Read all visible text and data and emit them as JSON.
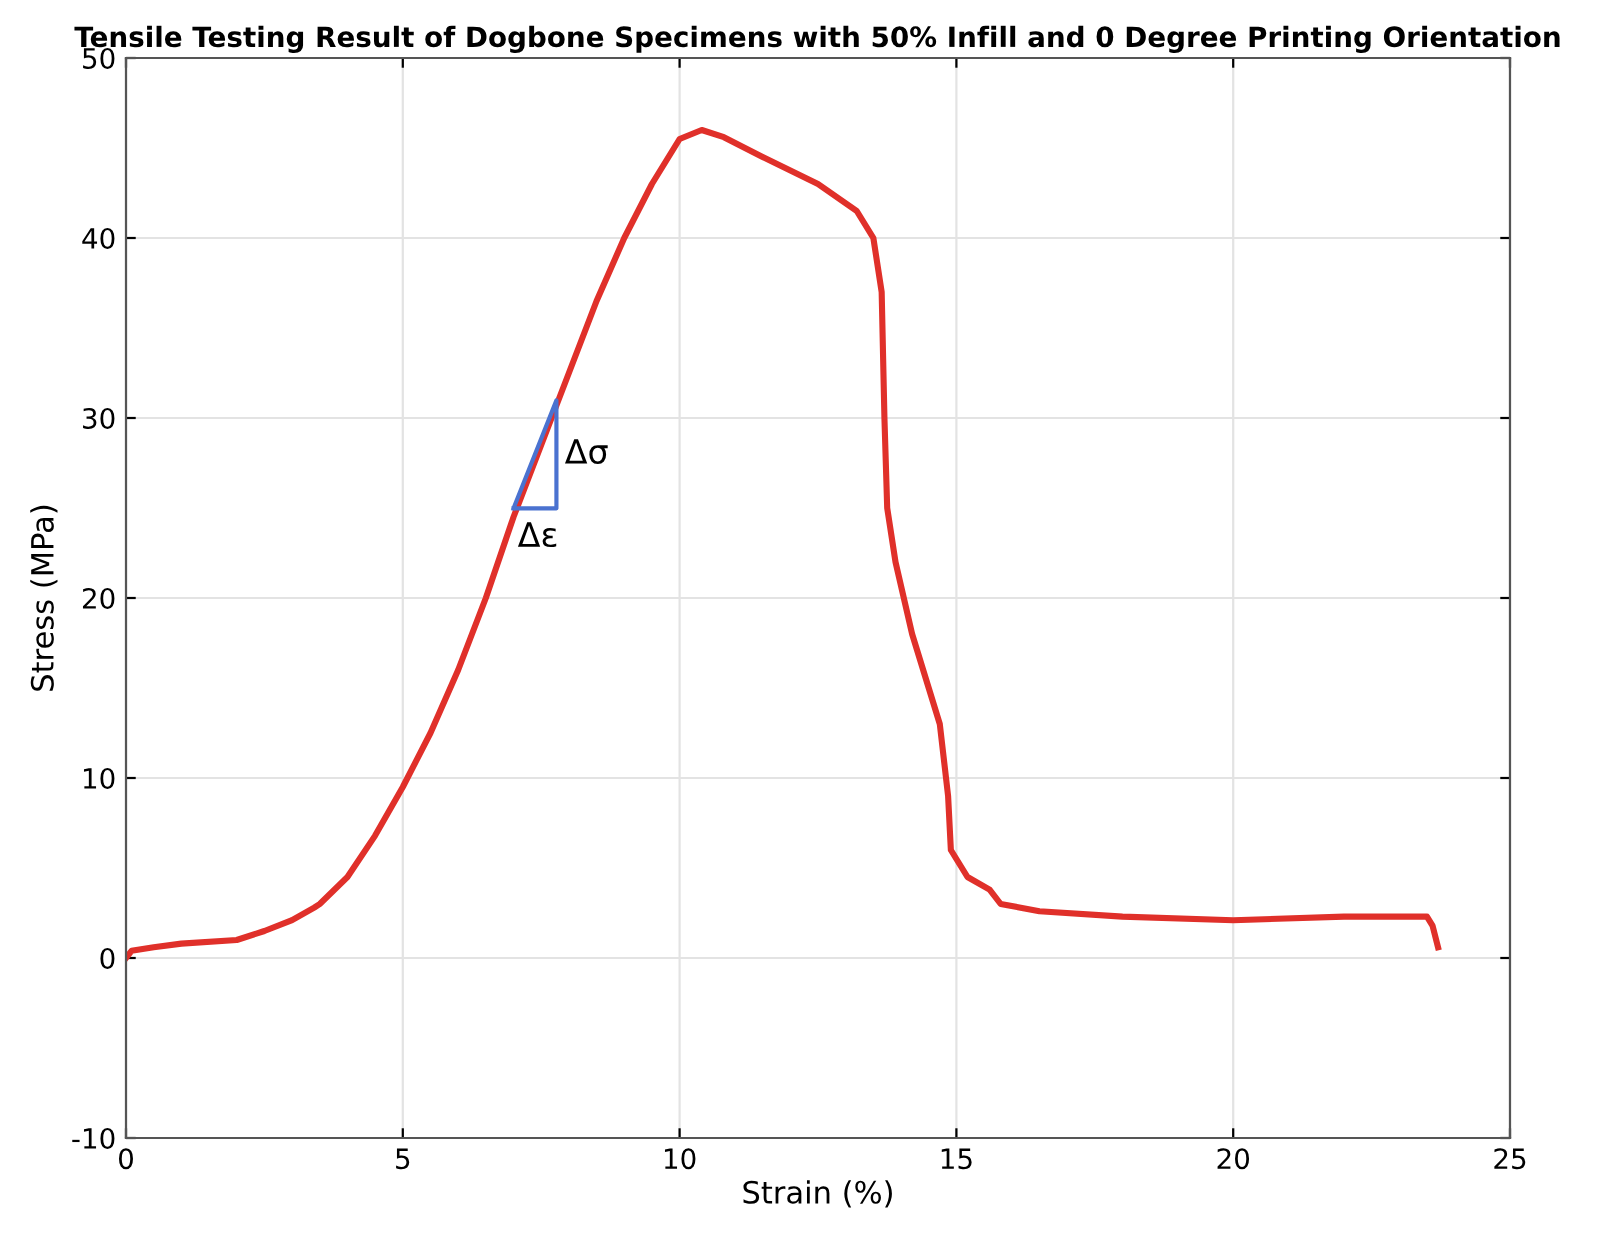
{
  "chart_data": {
    "type": "line",
    "title": "Tensile Testing Result of Dogbone Specimens with 50% Infill and 0 Degree Printing Orientation",
    "xlabel": "Strain (%)",
    "ylabel": "Stress (MPa)",
    "xlim": [
      0,
      25
    ],
    "xticks": [
      0,
      5,
      10,
      15,
      20,
      25
    ],
    "ylim": [
      -10,
      50
    ],
    "yticks": [
      -10,
      0,
      10,
      20,
      30,
      40,
      50
    ],
    "grid": true,
    "marker": "none",
    "line_style": "solid",
    "series": [
      {
        "color": "#e0302a",
        "x": [
          0,
          0.1,
          0.5,
          1,
          2,
          2.5,
          3,
          3.4,
          3.5,
          4,
          4.5,
          5,
          5.5,
          6,
          6.5,
          7,
          7.5,
          8,
          8.5,
          9,
          9.5,
          10,
          10.4,
          10.8,
          11.5,
          12.5,
          13.2,
          13.5,
          13.65,
          13.7,
          13.75,
          13.9,
          14.2,
          14.5,
          14.7,
          14.85,
          14.9,
          15.2,
          15.6,
          15.8,
          16.5,
          18,
          20,
          22,
          23.5,
          23.6,
          23.7
        ],
        "values": [
          0,
          0.4,
          0.6,
          0.8,
          1.0,
          1.5,
          2.1,
          2.8,
          3.0,
          4.5,
          6.8,
          9.5,
          12.5,
          16,
          20,
          24.5,
          28.5,
          32.5,
          36.5,
          40,
          43,
          45.5,
          46,
          45.6,
          44.5,
          43,
          41.5,
          40,
          37,
          30,
          25,
          22,
          18,
          15,
          13,
          9,
          6,
          4.5,
          3.8,
          3.0,
          2.6,
          2.3,
          2.1,
          2.3,
          2.3,
          1.8,
          0.6
        ]
      }
    ],
    "annotations": [
      "Δσ",
      "Δε"
    ]
  }
}
